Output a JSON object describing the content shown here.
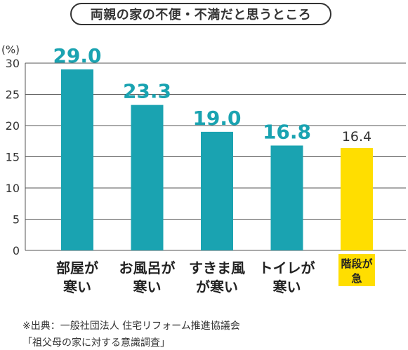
{
  "chart_data": {
    "type": "bar",
    "title": "両親の家の不便・不満だと思うところ",
    "ylabel": "(%)",
    "ylim": [
      0,
      30
    ],
    "yticks": [
      0,
      5,
      10,
      15,
      20,
      25,
      30
    ],
    "grid": "horizontal",
    "categories": [
      [
        "部屋が",
        "寒い"
      ],
      [
        "お風呂が",
        "寒い"
      ],
      [
        "すきま風",
        "が寒い"
      ],
      [
        "トイレが",
        "寒い"
      ],
      [
        "階段が",
        "急"
      ]
    ],
    "values": [
      29.0,
      23.3,
      19.0,
      16.8,
      16.4
    ],
    "value_labels": [
      "29.0",
      "23.3",
      "19.0",
      "16.8",
      "16.4"
    ],
    "colors": {
      "bar": "#1aa3b1",
      "highlight_bar": "#ffde00",
      "value_label": "#1aa3b1",
      "value_label_highlight": "#333333",
      "category_highlight_bg": "#ffde00"
    },
    "highlight_index": 4
  },
  "source": {
    "line1": "※出典：一般社団法人 住宅リフォーム推進協議会",
    "line2": "「祖父母の家に対する意識調査」"
  }
}
